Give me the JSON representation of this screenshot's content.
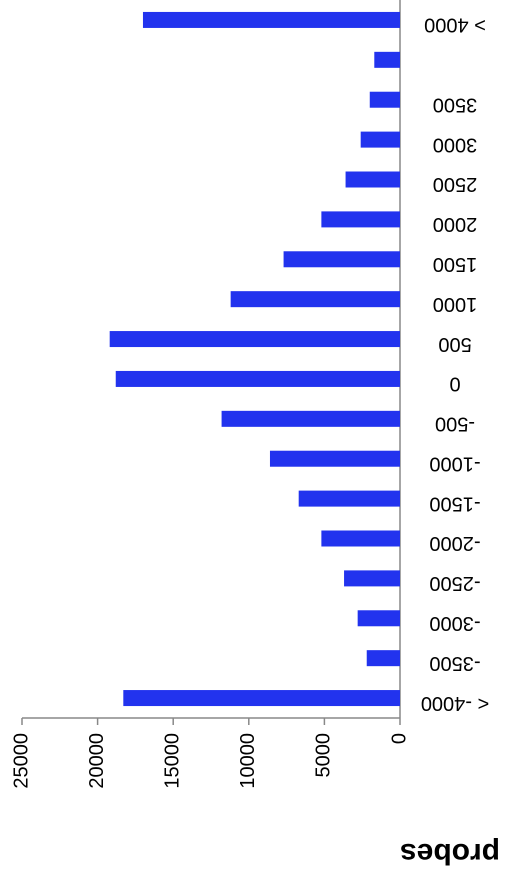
{
  "chart_data": {
    "type": "bar",
    "orientation": "rotated",
    "y_title": "probes",
    "categories": [
      "< -4000",
      "-3500",
      "-3000",
      "-2500",
      "-2000",
      "-1500",
      "-1000",
      "-500",
      "0",
      "500",
      "1000",
      "1500",
      "2000",
      "2500",
      "3000",
      "3500",
      null,
      "> 4000"
    ],
    "values": [
      18300,
      2200,
      2800,
      3700,
      5200,
      6700,
      8600,
      11800,
      18800,
      19200,
      11200,
      7700,
      5200,
      3600,
      2600,
      2000,
      1700,
      17000
    ],
    "color": "#2233ee",
    "ylim": [
      0,
      25000
    ],
    "yticks": [
      0,
      5000,
      10000,
      15000,
      20000,
      25000
    ]
  }
}
